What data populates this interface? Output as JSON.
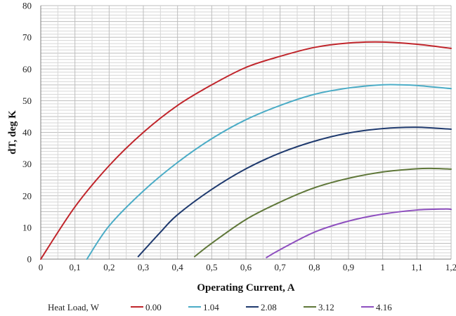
{
  "chart_data": {
    "type": "line",
    "title": "",
    "xlabel": "Operating Current, A",
    "ylabel": "dT, deg K",
    "xlim": [
      0,
      1.2
    ],
    "ylim": [
      0,
      80
    ],
    "x_ticks": [
      "0",
      "0,1",
      "0,2",
      "0,3",
      "0,4",
      "0,5",
      "0,6",
      "0,7",
      "0,8",
      "0,9",
      "1",
      "1,1",
      "1,2"
    ],
    "y_ticks": [
      "0",
      "10",
      "20",
      "30",
      "40",
      "50",
      "60",
      "70",
      "80"
    ],
    "grid": true,
    "legend_title": "Heat Load, W",
    "legend_position": "bottom",
    "series": [
      {
        "name": "0.00",
        "color": "#c0252b",
        "points": [
          [
            0,
            0
          ],
          [
            0.1,
            16.5
          ],
          [
            0.2,
            29.5
          ],
          [
            0.3,
            40
          ],
          [
            0.4,
            48.5
          ],
          [
            0.5,
            55
          ],
          [
            0.6,
            60.5
          ],
          [
            0.7,
            64
          ],
          [
            0.8,
            66.8
          ],
          [
            0.9,
            68.2
          ],
          [
            1.0,
            68.5
          ],
          [
            1.1,
            67.8
          ],
          [
            1.2,
            66.5
          ]
        ]
      },
      {
        "name": "1.04",
        "color": "#4bacc6",
        "points": [
          [
            0.135,
            0
          ],
          [
            0.2,
            10.5
          ],
          [
            0.3,
            21.5
          ],
          [
            0.4,
            30.5
          ],
          [
            0.5,
            38
          ],
          [
            0.6,
            44
          ],
          [
            0.7,
            48.5
          ],
          [
            0.8,
            52
          ],
          [
            0.9,
            54
          ],
          [
            1.0,
            55
          ],
          [
            1.05,
            55
          ],
          [
            1.1,
            54.8
          ],
          [
            1.2,
            53.8
          ]
        ]
      },
      {
        "name": "2.08",
        "color": "#1f3a6e",
        "points": [
          [
            0.285,
            0.8
          ],
          [
            0.35,
            8.5
          ],
          [
            0.4,
            14
          ],
          [
            0.5,
            22
          ],
          [
            0.6,
            28.5
          ],
          [
            0.7,
            33.5
          ],
          [
            0.8,
            37.2
          ],
          [
            0.9,
            39.8
          ],
          [
            1.0,
            41.2
          ],
          [
            1.1,
            41.6
          ],
          [
            1.2,
            41
          ]
        ]
      },
      {
        "name": "3.12",
        "color": "#5f7739",
        "points": [
          [
            0.45,
            0.8
          ],
          [
            0.5,
            5
          ],
          [
            0.6,
            12.5
          ],
          [
            0.7,
            18
          ],
          [
            0.8,
            22.5
          ],
          [
            0.9,
            25.5
          ],
          [
            1.0,
            27.5
          ],
          [
            1.1,
            28.5
          ],
          [
            1.15,
            28.6
          ],
          [
            1.2,
            28.4
          ]
        ]
      },
      {
        "name": "4.16",
        "color": "#8e4fbf",
        "points": [
          [
            0.66,
            0.5
          ],
          [
            0.7,
            3
          ],
          [
            0.8,
            8.5
          ],
          [
            0.9,
            12
          ],
          [
            1.0,
            14.2
          ],
          [
            1.1,
            15.5
          ],
          [
            1.18,
            15.8
          ],
          [
            1.2,
            15.7
          ]
        ]
      }
    ]
  }
}
